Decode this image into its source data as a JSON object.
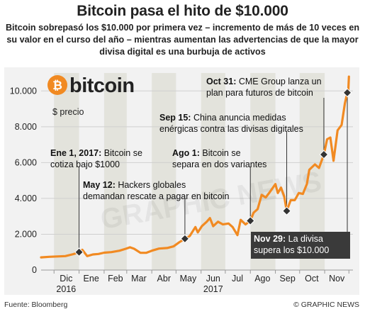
{
  "header": {
    "title": "Bitcoin pasa el hito de $10.000",
    "subtitle": "Bitcoin sobrepasó los $10.000 por primera vez – incremento de más de 10 veces en su valor en el curso del año – mientras aumentan las advertencias de que la mayor divisa digital es una burbuja de activos"
  },
  "logo": {
    "text": "bitcoin",
    "symbol": "₿"
  },
  "watermark": "GRAPHIC NEWS",
  "footer": {
    "source": "Fuente: Bloomberg",
    "credit": "© GRAPHIC NEWS"
  },
  "colors": {
    "line": "#f18a22",
    "marker": "#333333",
    "plot_bg": "#f2f2f2",
    "band": "#e3e3dc",
    "callout_dark": "#3a3a3a"
  },
  "chart_data": {
    "type": "line",
    "title": "Bitcoin pasa el hito de $10.000",
    "ylabel": "$ precio",
    "ylim": [
      0,
      11000
    ],
    "yticks": [
      0,
      2000,
      4000,
      6000,
      8000,
      10000
    ],
    "ytick_labels": [
      "0",
      "2.000",
      "4.000",
      "6.000",
      "8.000",
      "10.000"
    ],
    "x_range": [
      "2016-11-15",
      "2017-12-06"
    ],
    "month_labels": [
      {
        "label": "Dic",
        "year": "2016",
        "date": "2016-12-16"
      },
      {
        "label": "Ene",
        "year": "",
        "date": "2017-01-16"
      },
      {
        "label": "Feb",
        "year": "",
        "date": "2017-02-15"
      },
      {
        "label": "Mar",
        "year": "",
        "date": "2017-03-16"
      },
      {
        "label": "Abr",
        "year": "",
        "date": "2017-04-16"
      },
      {
        "label": "May",
        "year": "",
        "date": "2017-05-16"
      },
      {
        "label": "Jun",
        "year": "2017",
        "date": "2017-06-16"
      },
      {
        "label": "Jul",
        "year": "",
        "date": "2017-07-16"
      },
      {
        "label": "Ago",
        "year": "",
        "date": "2017-08-16"
      },
      {
        "label": "Sep",
        "year": "",
        "date": "2017-09-16"
      },
      {
        "label": "Oct",
        "year": "",
        "date": "2017-10-16"
      },
      {
        "label": "Nov",
        "year": "",
        "date": "2017-11-16"
      }
    ],
    "series": [
      {
        "points": [
          [
            "2016-11-15",
            710
          ],
          [
            "2016-11-25",
            740
          ],
          [
            "2016-12-05",
            760
          ],
          [
            "2016-12-15",
            780
          ],
          [
            "2016-12-25",
            890
          ],
          [
            "2017-01-01",
            1000
          ],
          [
            "2017-01-05",
            1130
          ],
          [
            "2017-01-11",
            780
          ],
          [
            "2017-01-18",
            870
          ],
          [
            "2017-01-25",
            900
          ],
          [
            "2017-02-01",
            970
          ],
          [
            "2017-02-10",
            1000
          ],
          [
            "2017-02-20",
            1080
          ],
          [
            "2017-02-28",
            1190
          ],
          [
            "2017-03-05",
            1270
          ],
          [
            "2017-03-10",
            1190
          ],
          [
            "2017-03-18",
            960
          ],
          [
            "2017-03-25",
            960
          ],
          [
            "2017-04-01",
            1080
          ],
          [
            "2017-04-10",
            1200
          ],
          [
            "2017-04-20",
            1230
          ],
          [
            "2017-04-28",
            1320
          ],
          [
            "2017-05-05",
            1550
          ],
          [
            "2017-05-12",
            1750
          ],
          [
            "2017-05-18",
            1900
          ],
          [
            "2017-05-25",
            2400
          ],
          [
            "2017-05-28",
            2100
          ],
          [
            "2017-06-02",
            2450
          ],
          [
            "2017-06-08",
            2700
          ],
          [
            "2017-06-12",
            2900
          ],
          [
            "2017-06-16",
            2450
          ],
          [
            "2017-06-22",
            2700
          ],
          [
            "2017-06-28",
            2550
          ],
          [
            "2017-07-05",
            2600
          ],
          [
            "2017-07-10",
            2400
          ],
          [
            "2017-07-16",
            1950
          ],
          [
            "2017-07-20",
            2800
          ],
          [
            "2017-07-26",
            2550
          ],
          [
            "2017-08-01",
            2750
          ],
          [
            "2017-08-05",
            3200
          ],
          [
            "2017-08-10",
            3400
          ],
          [
            "2017-08-15",
            4200
          ],
          [
            "2017-08-20",
            4050
          ],
          [
            "2017-08-25",
            4350
          ],
          [
            "2017-09-01",
            4800
          ],
          [
            "2017-09-04",
            4300
          ],
          [
            "2017-09-08",
            4600
          ],
          [
            "2017-09-12",
            4100
          ],
          [
            "2017-09-15",
            3300
          ],
          [
            "2017-09-20",
            3900
          ],
          [
            "2017-09-25",
            3900
          ],
          [
            "2017-09-30",
            4300
          ],
          [
            "2017-10-05",
            4250
          ],
          [
            "2017-10-10",
            4800
          ],
          [
            "2017-10-13",
            5600
          ],
          [
            "2017-10-20",
            5900
          ],
          [
            "2017-10-25",
            5700
          ],
          [
            "2017-10-31",
            6450
          ],
          [
            "2017-11-04",
            7300
          ],
          [
            "2017-11-08",
            7400
          ],
          [
            "2017-11-12",
            6100
          ],
          [
            "2017-11-17",
            7800
          ],
          [
            "2017-11-22",
            8100
          ],
          [
            "2017-11-26",
            9300
          ],
          [
            "2017-11-29",
            9900
          ],
          [
            "2017-11-30",
            9800
          ],
          [
            "2017-12-01",
            10800
          ]
        ]
      }
    ],
    "annotations": [
      {
        "date": "Ene 1, 2017:",
        "text_lines": [
          "Bitcoin se",
          "cotiza bajo $1000"
        ],
        "x": "2017-01-01",
        "y": 1000
      },
      {
        "date": "May 12:",
        "text_lines": [
          "Hackers globales",
          "demandan rescate a pagar en bitcoin"
        ],
        "x": "2017-05-12",
        "y": 1750
      },
      {
        "date": "Ago 1:",
        "text_lines": [
          "Bitcoin se",
          "separa en dos variantes"
        ],
        "x": "2017-08-01",
        "y": 2750
      },
      {
        "date": "Sep 15:",
        "text_lines": [
          "China anuncia medidas",
          "enérgicas contra las divisas digitales"
        ],
        "x": "2017-09-15",
        "y": 3300
      },
      {
        "date": "Oct 31:",
        "text_lines": [
          "CME Group lanza un",
          "plan para futuros de bitcoin"
        ],
        "x": "2017-10-31",
        "y": 6450
      },
      {
        "date": "Nov 29:",
        "text_lines": [
          "La divisa",
          "supera los $10.000"
        ],
        "x": "2017-11-29",
        "y": 9900
      }
    ],
    "grid": true,
    "legend": "none"
  }
}
